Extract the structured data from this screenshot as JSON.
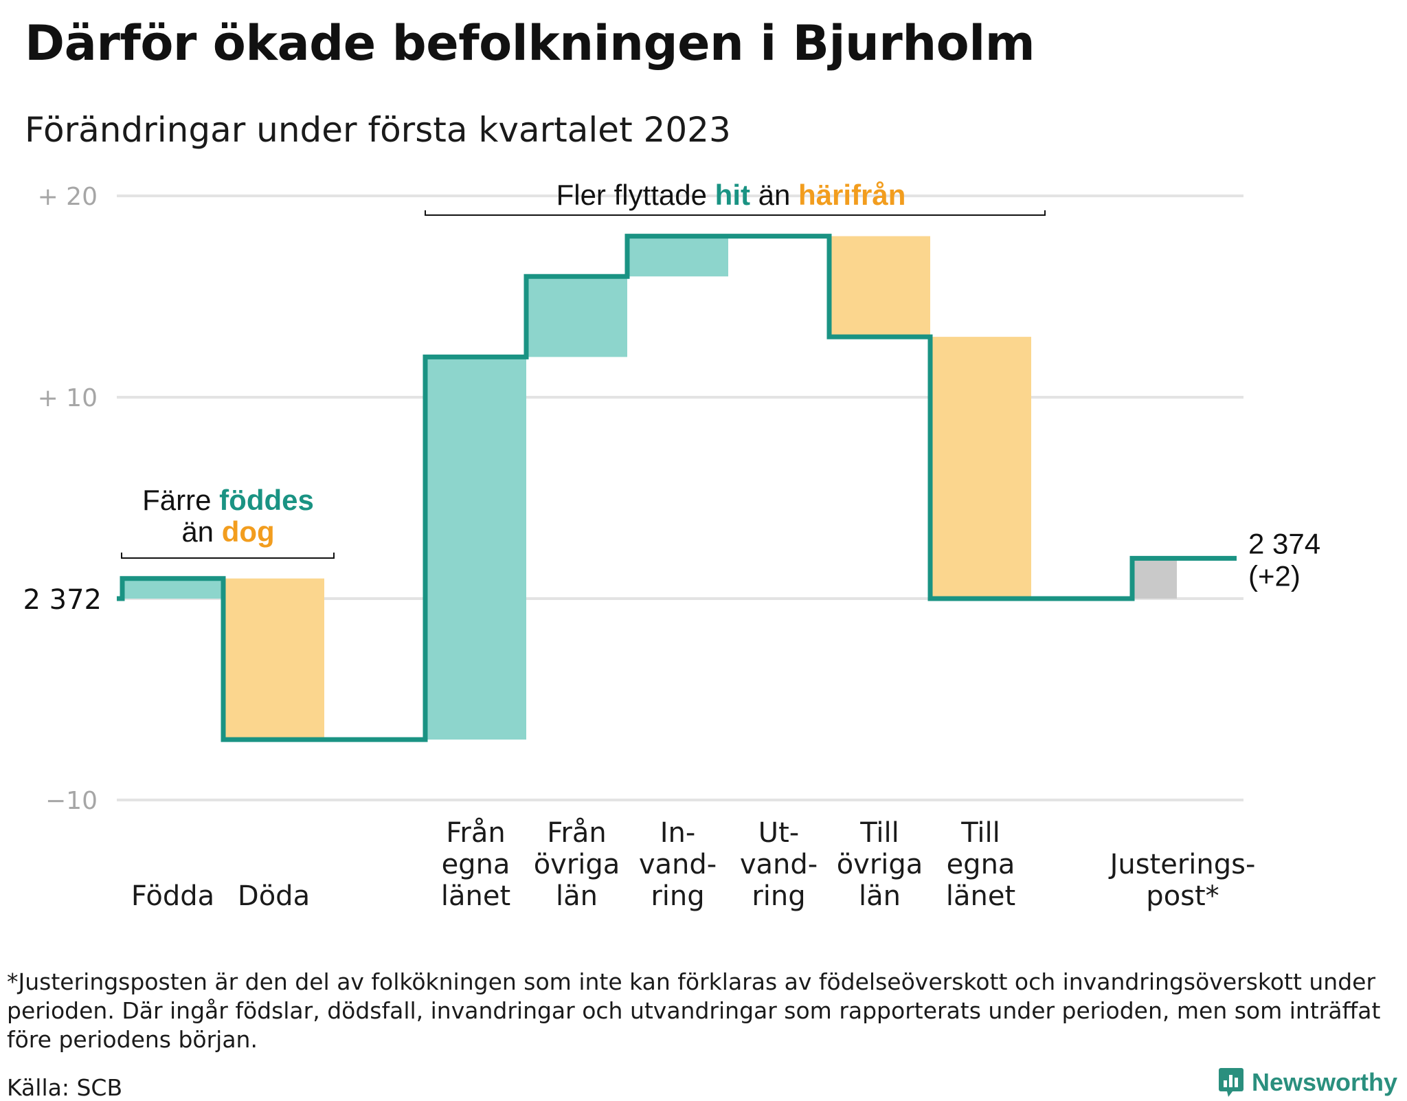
{
  "header": {
    "title": "Därför ökade befolkningen i Bjurholm",
    "subtitle": "Förändringar under första kvartalet 2023"
  },
  "colors": {
    "teal": "#1a9383",
    "teal_fill": "#8dd5cc",
    "orange": "#f29d1e",
    "orange_fill": "#fbd68e",
    "gray_fill": "#c9c9c9",
    "grid": "#e3e3e3",
    "tick": "#a6a6a6"
  },
  "chart_data": {
    "type": "waterfall",
    "baseline_value": "2 372",
    "ylim": [
      -10,
      20
    ],
    "yticks": [
      {
        "value": 20,
        "label": "+ 20"
      },
      {
        "value": 10,
        "label": "+ 10"
      },
      {
        "value": -10,
        "label": "−10"
      }
    ],
    "bars": [
      {
        "key": "fodda",
        "label_lines": [
          "Födda"
        ],
        "change": 1,
        "kind": "plus"
      },
      {
        "key": "doda",
        "label_lines": [
          "Döda"
        ],
        "change": -8,
        "kind": "minus"
      },
      {
        "key": "gap",
        "label_lines": [],
        "change": 0,
        "kind": "none"
      },
      {
        "key": "fran_egna",
        "label_lines": [
          "Från",
          "egna",
          "länet"
        ],
        "change": 19,
        "kind": "plus"
      },
      {
        "key": "fran_ovriga",
        "label_lines": [
          "Från",
          "övriga",
          "län"
        ],
        "change": 4,
        "kind": "plus"
      },
      {
        "key": "invandring",
        "label_lines": [
          "In-",
          "vand-",
          "ring"
        ],
        "change": 2,
        "kind": "plus"
      },
      {
        "key": "utvandring",
        "label_lines": [
          "Ut-",
          "vand-",
          "ring"
        ],
        "change": 0,
        "kind": "minus"
      },
      {
        "key": "till_ovriga",
        "label_lines": [
          "Till",
          "övriga",
          "län"
        ],
        "change": -5,
        "kind": "minus"
      },
      {
        "key": "till_egna",
        "label_lines": [
          "Till",
          "egna",
          "länet"
        ],
        "change": -13,
        "kind": "minus"
      },
      {
        "key": "gap2",
        "label_lines": [],
        "change": 0,
        "kind": "none"
      },
      {
        "key": "justeringspost",
        "label_lines": [
          "Justerings-",
          "post*"
        ],
        "change": 2,
        "kind": "adjust"
      }
    ],
    "end_label": {
      "value": "2 374",
      "change": "(+2)"
    },
    "annotations": {
      "births": {
        "line1": "Färre ",
        "line1_teal": "föddes",
        "line2": "än ",
        "line2_orange": "dog"
      },
      "migration": {
        "text": "Fler flyttade ",
        "teal": "hit",
        "middle": " än ",
        "orange": "härifrån"
      }
    }
  },
  "footnote": "*Justeringsposten är den del av folkökningen som inte kan förklaras av födelseöverskott och invandringsöverskott under perioden. Där ingår födslar, dödsfall, invandringar och utvandringar som rapporterats under perioden, men som inträffat före periodens början.",
  "source": "Källa: SCB",
  "brand": {
    "name": "Newsworthy",
    "icon": "newsworthy-logo-icon"
  }
}
